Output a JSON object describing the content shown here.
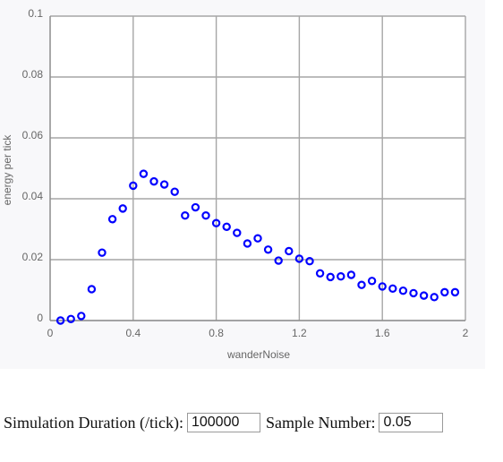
{
  "colors": {
    "marker": "#0000ff",
    "grid": "#a6a6a6",
    "axis": "#888888",
    "panel": "#f8f8fa"
  },
  "chart_data": {
    "type": "scatter",
    "title": "",
    "xlabel": "wanderNoise",
    "ylabel": "energy per tick",
    "xlim": [
      0,
      2
    ],
    "ylim": [
      0,
      0.1
    ],
    "grid": true,
    "marker": "open-circle",
    "x_ticks": [
      "0",
      "0.4",
      "0.8",
      "1.2",
      "1.6",
      "2"
    ],
    "x_tick_values": [
      0,
      0.4,
      0.8,
      1.2,
      1.6,
      2
    ],
    "y_ticks": [
      "0",
      "0.02",
      "0.04",
      "0.06",
      "0.08",
      "0.1"
    ],
    "y_tick_values": [
      0,
      0.02,
      0.04,
      0.06,
      0.08,
      0.1
    ],
    "x_gridlines": [
      0,
      0.4,
      0.8,
      1.2,
      1.6,
      2
    ],
    "y_gridlines": [
      0,
      0.02,
      0.04,
      0.06,
      0.08,
      0.1
    ],
    "points": [
      {
        "x": 0.05,
        "y": 0.0
      },
      {
        "x": 0.1,
        "y": 0.0005
      },
      {
        "x": 0.15,
        "y": 0.0015
      },
      {
        "x": 0.2,
        "y": 0.0103
      },
      {
        "x": 0.25,
        "y": 0.0223
      },
      {
        "x": 0.3,
        "y": 0.0333
      },
      {
        "x": 0.35,
        "y": 0.0368
      },
      {
        "x": 0.4,
        "y": 0.0443
      },
      {
        "x": 0.45,
        "y": 0.0482
      },
      {
        "x": 0.5,
        "y": 0.0457
      },
      {
        "x": 0.55,
        "y": 0.0447
      },
      {
        "x": 0.6,
        "y": 0.0423
      },
      {
        "x": 0.65,
        "y": 0.0345
      },
      {
        "x": 0.7,
        "y": 0.0372
      },
      {
        "x": 0.75,
        "y": 0.0345
      },
      {
        "x": 0.8,
        "y": 0.032
      },
      {
        "x": 0.85,
        "y": 0.0308
      },
      {
        "x": 0.9,
        "y": 0.0288
      },
      {
        "x": 0.95,
        "y": 0.0253
      },
      {
        "x": 1.0,
        "y": 0.027
      },
      {
        "x": 1.05,
        "y": 0.0233
      },
      {
        "x": 1.1,
        "y": 0.0197
      },
      {
        "x": 1.15,
        "y": 0.0228
      },
      {
        "x": 1.2,
        "y": 0.0203
      },
      {
        "x": 1.25,
        "y": 0.0195
      },
      {
        "x": 1.3,
        "y": 0.0155
      },
      {
        "x": 1.35,
        "y": 0.0143
      },
      {
        "x": 1.4,
        "y": 0.0145
      },
      {
        "x": 1.45,
        "y": 0.015
      },
      {
        "x": 1.5,
        "y": 0.0117
      },
      {
        "x": 1.55,
        "y": 0.013
      },
      {
        "x": 1.6,
        "y": 0.0112
      },
      {
        "x": 1.65,
        "y": 0.0105
      },
      {
        "x": 1.7,
        "y": 0.0098
      },
      {
        "x": 1.75,
        "y": 0.009
      },
      {
        "x": 1.8,
        "y": 0.0082
      },
      {
        "x": 1.85,
        "y": 0.0077
      },
      {
        "x": 1.9,
        "y": 0.0093
      },
      {
        "x": 1.95,
        "y": 0.0093
      }
    ]
  },
  "controls": {
    "duration_label": "Simulation Duration (/tick):",
    "duration_value": "100000",
    "sample_label": "Sample Number:",
    "sample_value": "0.05"
  }
}
